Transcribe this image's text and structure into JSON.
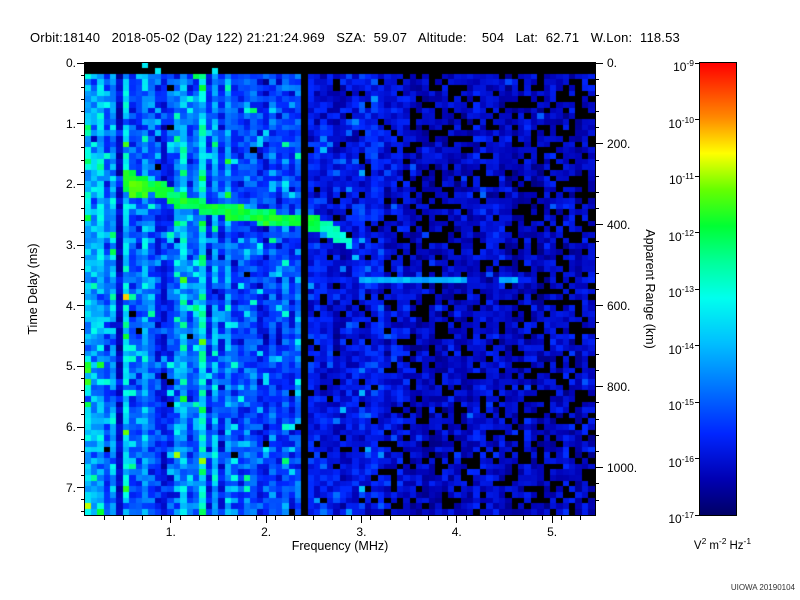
{
  "header": {
    "text": "Orbit:18140   2018-05-02 (Day 122) 21:21:24.969   SZA:  59.07   Altitude:    504   Lat:  62.71   W.Lon:  118.53"
  },
  "credit": {
    "text": "UIOWA 20190104"
  },
  "colors": {
    "background": "#ffffff",
    "text": "#000000",
    "frame": "#000000"
  },
  "chart_data": {
    "type": "heatmap",
    "title": "Orbit:18140   2018-05-02 (Day 122) 21:21:24.969   SZA:  59.07   Altitude:    504   Lat:  62.71   W.Lon:  118.53",
    "xlabel": "Frequency (MHz)",
    "ylabel": "Time Delay (ms)",
    "ylabel_right": "Apparent Range (km)",
    "x_range": [
      0.1,
      5.45
    ],
    "x_major_ticks": [
      1,
      2,
      3,
      4,
      5
    ],
    "x_tick_labels": [
      "1.",
      "2.",
      "3.",
      "4.",
      "5."
    ],
    "x_minor_step": 0.2,
    "y_range": [
      0,
      7.45
    ],
    "y_major_ticks": [
      0,
      1,
      2,
      3,
      4,
      5,
      6,
      7
    ],
    "y_tick_labels": [
      "0.",
      "1.",
      "2.",
      "3.",
      "4.",
      "5.",
      "6.",
      "7."
    ],
    "y_minor_step": 0.2,
    "y_right_ticks_km": [
      0,
      200,
      400,
      600,
      800,
      1000
    ],
    "y_right_tick_labels": [
      "0.",
      "200.",
      "400.",
      "600.",
      "800.",
      "1000."
    ],
    "y_right_minor_step_km": 40,
    "km_per_ms": 149.9,
    "grid": false,
    "colorbar": {
      "scale": "log",
      "scale_base": "10",
      "tick_exponents": [
        "-9",
        "-10",
        "-11",
        "-12",
        "-13",
        "-14",
        "-15",
        "-16",
        "-17"
      ],
      "units_parts": [
        [
          "V",
          "2"
        ],
        [
          "m",
          "-2"
        ],
        [
          "Hz",
          "-1"
        ]
      ]
    },
    "colormap": [
      [
        0.0,
        "#000066"
      ],
      [
        0.08,
        "#0000b3"
      ],
      [
        0.18,
        "#0026ff"
      ],
      [
        0.28,
        "#0073ff"
      ],
      [
        0.38,
        "#00bfff"
      ],
      [
        0.48,
        "#00ffee"
      ],
      [
        0.56,
        "#00ff99"
      ],
      [
        0.64,
        "#00ff33"
      ],
      [
        0.72,
        "#66ff00"
      ],
      [
        0.8,
        "#ffff00"
      ],
      [
        0.88,
        "#ff8800"
      ],
      [
        1.0,
        "#ff0000"
      ]
    ],
    "annotations": [
      "ionospheric echo trace descending from ~0.5 MHz at 1.9 ms to ~2.9 MHz at 3.0 ms",
      "faint horizontal echo at ~3.5 ms between 3.0 and 4.65 MHz",
      "instrument gap (black column) near 2.4 MHz",
      "bright vertical plasma-oscillation lines below ~1.7 MHz",
      "black band at top of ionogram (t < 0.15 ms)",
      "mottled black/dark-blue low-signal region above ~3.2 MHz"
    ],
    "spectrogram": {
      "cols": 80,
      "rows": 80,
      "seed": 1337,
      "top_black_ms": 0.15,
      "regions": [
        {
          "f_max": 2.36,
          "mean": 0.21,
          "sd": 0.1,
          "speckle_p": 0.1,
          "speckle_boost": 0.2,
          "black_p": 0.01
        },
        {
          "f_max": 3.25,
          "mean": 0.15,
          "sd": 0.08,
          "speckle_p": 0.05,
          "speckle_boost": 0.14,
          "black_p": 0.06
        },
        {
          "f_max": 4.55,
          "mean": 0.11,
          "sd": 0.07,
          "speckle_p": 0.02,
          "speckle_boost": 0.1,
          "black_p": 0.22
        },
        {
          "f_max": 9.0,
          "mean": 0.1,
          "sd": 0.07,
          "speckle_p": 0.01,
          "speckle_boost": 0.08,
          "black_p": 0.34
        }
      ],
      "stripes": [
        {
          "f": 0.13,
          "boost": 0.26
        },
        {
          "f": 0.24,
          "boost": 0.18
        },
        {
          "f": 0.38,
          "boost": 0.14
        },
        {
          "f": 0.55,
          "boost": 0.26
        },
        {
          "f": 0.76,
          "boost": 0.16
        },
        {
          "f": 1.1,
          "boost": 0.14
        },
        {
          "f": 1.35,
          "boost": 0.3
        },
        {
          "f": 1.46,
          "boost": 0.18
        },
        {
          "f": 1.63,
          "boost": 0.14
        }
      ],
      "stripe_halfwidth": 0.04,
      "dark_stripes": [
        {
          "f": 0.45,
          "mult": 0.5
        },
        {
          "f": 0.95,
          "mult": 0.65
        }
      ],
      "gap": {
        "f0": 2.35,
        "f1": 2.47
      },
      "trace": {
        "points": [
          [
            0.5,
            1.95
          ],
          [
            0.62,
            2.02
          ],
          [
            0.78,
            2.05
          ],
          [
            0.95,
            2.12
          ],
          [
            1.08,
            2.28
          ],
          [
            1.22,
            2.32
          ],
          [
            1.38,
            2.4
          ],
          [
            1.55,
            2.44
          ],
          [
            1.75,
            2.48
          ],
          [
            1.95,
            2.54
          ],
          [
            2.15,
            2.6
          ],
          [
            2.35,
            2.62
          ],
          [
            2.5,
            2.65
          ],
          [
            2.65,
            2.72
          ],
          [
            2.8,
            2.88
          ],
          [
            2.92,
            3.05
          ]
        ],
        "halfwidth_ms": 0.12,
        "start_halfwidth_ms": 0.2,
        "value": 0.58,
        "start_value": 0.62,
        "tail_value": 0.45
      },
      "hline": {
        "t": 3.55,
        "f0": 3.0,
        "f1": 4.65,
        "halfwidth_ms": 0.05,
        "value": 0.32
      }
    }
  }
}
